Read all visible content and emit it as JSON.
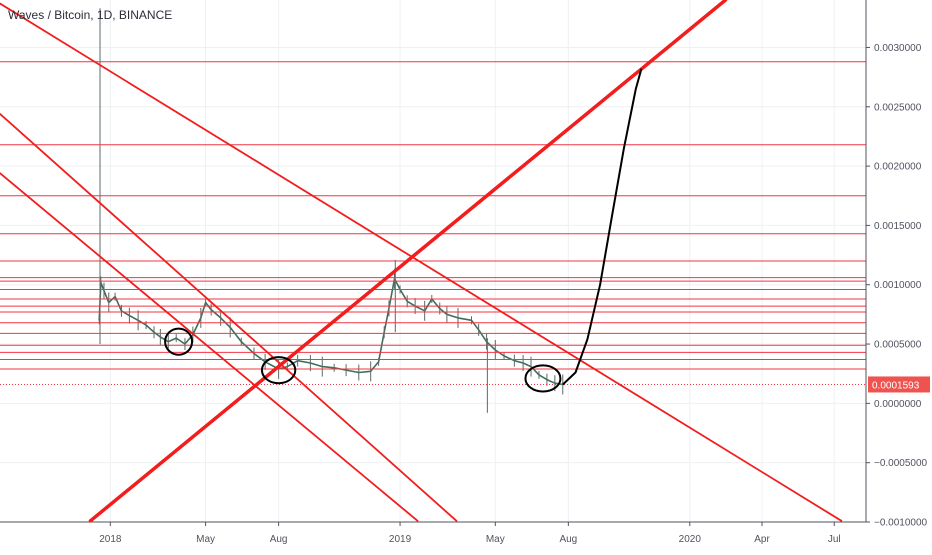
{
  "header": {
    "symbol_title": "Waves / Bitcoin, 1D, BINANCE"
  },
  "chart_data": {
    "type": "candlestick",
    "title": "Waves / Bitcoin, 1D, BINANCE",
    "y_axis": {
      "position": "right",
      "ylim": [
        -0.001,
        0.0034
      ],
      "tick_labels": [
        "0.0030000",
        "0.0025000",
        "0.0020000",
        "0.0015000",
        "0.0010000",
        "0.0005000",
        "0.0000000",
        "−0.0005000",
        "−0.0010000"
      ],
      "tick_values": [
        0.003,
        0.0025,
        0.002,
        0.0015,
        0.001,
        0.0005,
        0.0,
        -0.0005,
        -0.001
      ]
    },
    "x_axis": {
      "tick_labels": [
        "2018",
        "May",
        "Aug",
        "2019",
        "May",
        "Aug",
        "2020",
        "Apr",
        "Jul"
      ],
      "tick_dates": [
        "2018-01-01",
        "2018-05-01",
        "2018-08-01",
        "2019-01-01",
        "2019-05-01",
        "2019-08-01",
        "2020-01-01",
        "2020-04-01",
        "2020-07-01"
      ],
      "range": [
        "2017-08-15",
        "2020-08-10"
      ]
    },
    "last_price": {
      "label": "0.0001593",
      "value": 0.0001593,
      "color": "#ef5350"
    },
    "grid": true,
    "price_series": {
      "name": "",
      "points": [
        [
          "2017-12-18",
          0.0007
        ],
        [
          "2017-12-20",
          0.00102
        ],
        [
          "2017-12-24",
          0.00095
        ],
        [
          "2017-12-30",
          0.00085
        ],
        [
          "2018-01-07",
          0.0009
        ],
        [
          "2018-01-15",
          0.00078
        ],
        [
          "2018-01-25",
          0.00074
        ],
        [
          "2018-02-05",
          0.0007
        ],
        [
          "2018-02-15",
          0.00066
        ],
        [
          "2018-02-25",
          0.0006
        ],
        [
          "2018-03-05",
          0.00056
        ],
        [
          "2018-03-15",
          0.00052
        ],
        [
          "2018-03-25",
          0.00055
        ],
        [
          "2018-04-05",
          0.0005
        ],
        [
          "2018-04-15",
          0.00058
        ],
        [
          "2018-04-25",
          0.00072
        ],
        [
          "2018-05-01",
          0.00085
        ],
        [
          "2018-05-08",
          0.00079
        ],
        [
          "2018-05-20",
          0.00072
        ],
        [
          "2018-06-01",
          0.00064
        ],
        [
          "2018-06-15",
          0.00052
        ],
        [
          "2018-07-01",
          0.00042
        ],
        [
          "2018-07-15",
          0.00035
        ],
        [
          "2018-08-01",
          0.00029
        ],
        [
          "2018-08-12",
          0.00031
        ],
        [
          "2018-08-25",
          0.00036
        ],
        [
          "2018-09-10",
          0.00034
        ],
        [
          "2018-09-25",
          0.00031
        ],
        [
          "2018-10-10",
          0.0003
        ],
        [
          "2018-10-25",
          0.00028
        ],
        [
          "2018-11-10",
          0.00026
        ],
        [
          "2018-11-25",
          0.00027
        ],
        [
          "2018-12-05",
          0.00035
        ],
        [
          "2018-12-12",
          0.0006
        ],
        [
          "2018-12-18",
          0.0008
        ],
        [
          "2018-12-25",
          0.00105
        ],
        [
          "2019-01-01",
          0.00096
        ],
        [
          "2019-01-10",
          0.00086
        ],
        [
          "2019-01-20",
          0.00082
        ],
        [
          "2019-02-01",
          0.00078
        ],
        [
          "2019-02-10",
          0.00088
        ],
        [
          "2019-02-20",
          0.0008
        ],
        [
          "2019-03-01",
          0.00075
        ],
        [
          "2019-03-15",
          0.00072
        ],
        [
          "2019-04-01",
          0.0007
        ],
        [
          "2019-04-10",
          0.00062
        ],
        [
          "2019-04-20",
          0.00052
        ],
        [
          "2019-05-01",
          0.00045
        ],
        [
          "2019-05-12",
          0.0004
        ],
        [
          "2019-05-25",
          0.00036
        ],
        [
          "2019-06-05",
          0.00034
        ],
        [
          "2019-06-15",
          0.00031
        ],
        [
          "2019-06-25",
          0.00024
        ],
        [
          "2019-07-05",
          0.0002
        ],
        [
          "2019-07-15",
          0.00017
        ],
        [
          "2019-07-25",
          0.000159
        ]
      ],
      "spikes": [
        {
          "date": "2017-12-19",
          "high": 0.00333,
          "low": 0.0005
        },
        {
          "date": "2018-12-26",
          "high": 0.00121,
          "low": 0.0006
        },
        {
          "date": "2019-04-21",
          "high": 0.00055,
          "low": -8e-05
        }
      ]
    },
    "annotations": {
      "horizontal_levels": [
        0.00288,
        0.00218,
        0.00175,
        0.00143,
        0.0012,
        0.00106,
        0.00103,
        0.00096,
        0.00088,
        0.00082,
        0.00077,
        0.00068,
        0.00059,
        0.00049,
        0.00043,
        0.00037,
        0.00029
      ],
      "baseline_level": 0.000159,
      "trend_lines": [
        {
          "from": [
            "2017-08-15",
            0.00337
          ],
          "to": [
            "2020-07-10",
            -0.00099
          ]
        },
        {
          "from": [
            "2017-08-15",
            0.00244
          ],
          "to": [
            "2019-03-13",
            -0.00099
          ]
        },
        {
          "from": [
            "2017-08-15",
            0.00194
          ],
          "to": [
            "2019-01-23",
            -0.00099
          ]
        },
        {
          "from": [
            "2017-12-07",
            -0.00099
          ],
          "to": [
            "2020-02-15",
            0.0034
          ],
          "width": "thick"
        }
      ],
      "highlight_ellipses": [
        {
          "center": [
            "2018-03-28",
            0.00052
          ],
          "rx_days": 17,
          "ry": 0.00011
        },
        {
          "center": [
            "2018-08-01",
            0.00028
          ],
          "rx_days": 21,
          "ry": 0.00011
        },
        {
          "center": [
            "2019-06-30",
            0.00021
          ],
          "rx_days": 22,
          "ry": 0.00011
        }
      ],
      "projection_curve": [
        [
          "2019-07-25",
          0.000159
        ],
        [
          "2019-08-10",
          0.00026
        ],
        [
          "2019-08-25",
          0.00054
        ],
        [
          "2019-09-10",
          0.001
        ],
        [
          "2019-09-25",
          0.00158
        ],
        [
          "2019-10-10",
          0.00215
        ],
        [
          "2019-10-25",
          0.00265
        ],
        [
          "2019-11-01",
          0.00282
        ]
      ]
    }
  }
}
